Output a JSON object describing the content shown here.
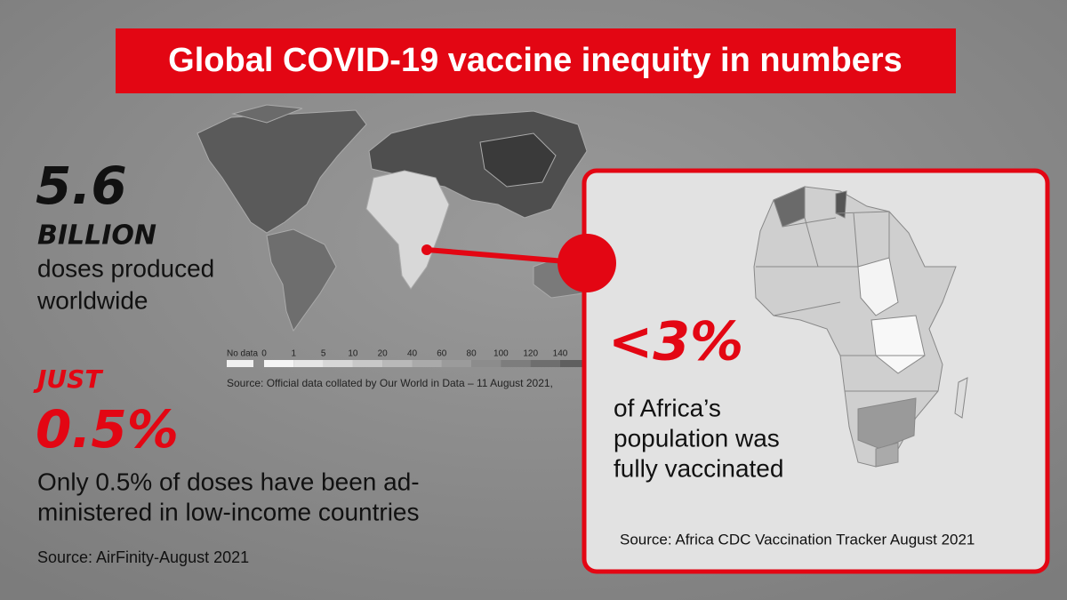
{
  "header": {
    "title": "Global COVID-19 vaccine inequity in numbers"
  },
  "left": {
    "stat1": {
      "number": "5.6",
      "unit": "BILLION",
      "caption": [
        "doses produced",
        "worldwide"
      ]
    },
    "stat2": {
      "lead": "JUST",
      "number": "0.5%",
      "caption": [
        "Only 0.5% of doses have been ad-",
        "ministered in low-income countries"
      ],
      "source": "Source: AirFinity-August 2021"
    }
  },
  "world_map": {
    "legend": {
      "no_data": "No data",
      "labels": [
        "0",
        "1",
        "5",
        "10",
        "20",
        "40",
        "60",
        "80",
        "100",
        "120",
        "140"
      ]
    },
    "source": "Source: Official data collated by Our World in Data – 11 August 2021,"
  },
  "africa_panel": {
    "number": "<3%",
    "caption": [
      "of Africa’s",
      "population was",
      "fully vaccinated"
    ],
    "source": "Source: Africa CDC Vaccination Tracker August 2021"
  }
}
